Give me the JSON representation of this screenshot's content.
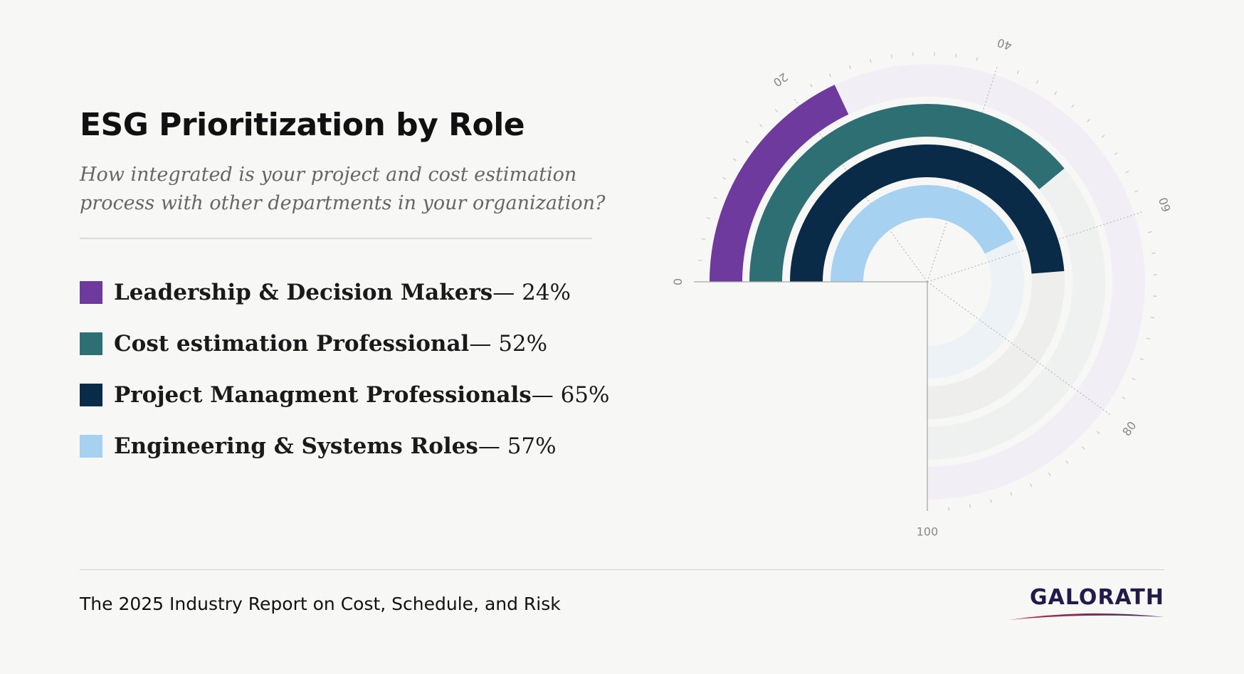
{
  "header": {
    "title": "ESG Prioritization by Role",
    "subtitle": "How integrated is your project and cost estimation process with other departments in your organization?"
  },
  "legend": {
    "separator": "—"
  },
  "chart_data": {
    "type": "radial-bar",
    "scale": [
      0,
      100
    ],
    "ticks": [
      "0",
      "20",
      "40",
      "60",
      "80",
      "100"
    ],
    "series": [
      {
        "name": "Leadership & Decision Makers",
        "value": 24,
        "label": "24%",
        "color": "#6e3a9e",
        "track_color": "#f1eff5"
      },
      {
        "name": "Cost estimation Professional",
        "value": 52,
        "label": "52%",
        "color": "#2e6f74",
        "track_color": "#eff1f0"
      },
      {
        "name": "Project Managment Professionals",
        "value": 65,
        "label": "65%",
        "color": "#0a2b47",
        "track_color": "#eeeeec"
      },
      {
        "name": "Engineering & Systems Roles",
        "value": 57,
        "label": "57%",
        "color": "#a6d1f1",
        "track_color": "#ecf2f6"
      }
    ]
  },
  "footer": {
    "report_title": "The 2025 Industry Report on Cost, Schedule, and Risk",
    "logo_text": "GALORATH"
  }
}
